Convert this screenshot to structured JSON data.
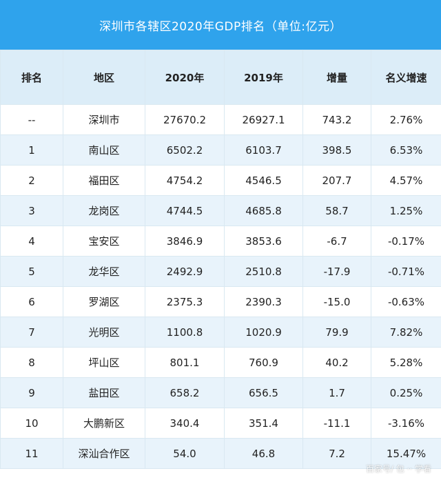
{
  "title": "深圳市各辖区2020年GDP排名（单位:亿元）",
  "columns": [
    "排名",
    "地区",
    "2020年",
    "2019年",
    "增量",
    "名义增速"
  ],
  "rows": [
    [
      "--",
      "深圳市",
      "27670.2",
      "26927.1",
      "743.2",
      "2.76%"
    ],
    [
      "1",
      "南山区",
      "6502.2",
      "6103.7",
      "398.5",
      "6.53%"
    ],
    [
      "2",
      "福田区",
      "4754.2",
      "4546.5",
      "207.7",
      "4.57%"
    ],
    [
      "3",
      "龙岗区",
      "4744.5",
      "4685.8",
      "58.7",
      "1.25%"
    ],
    [
      "4",
      "宝安区",
      "3846.9",
      "3853.6",
      "-6.7",
      "-0.17%"
    ],
    [
      "5",
      "龙华区",
      "2492.9",
      "2510.8",
      "-17.9",
      "-0.71%"
    ],
    [
      "6",
      "罗湖区",
      "2375.3",
      "2390.3",
      "-15.0",
      "-0.63%"
    ],
    [
      "7",
      "光明区",
      "1100.8",
      "1020.9",
      "79.9",
      "7.82%"
    ],
    [
      "8",
      "坪山区",
      "801.1",
      "760.9",
      "40.2",
      "5.28%"
    ],
    [
      "9",
      "盐田区",
      "658.2",
      "656.5",
      "1.7",
      "0.25%"
    ],
    [
      "10",
      "大鹏新区",
      "340.4",
      "351.4",
      "-11.1",
      "-3.16%"
    ],
    [
      "11",
      "深汕合作区",
      "54.0",
      "46.8",
      "7.2",
      "15.47%"
    ]
  ],
  "watermark": "百家号/ 包 ·· 学看",
  "colors": {
    "title_bg": "#2fa3ec",
    "header_bg": "#dcedf8",
    "stripe_bg": "#e8f3fb",
    "border": "#d9e8f1"
  }
}
